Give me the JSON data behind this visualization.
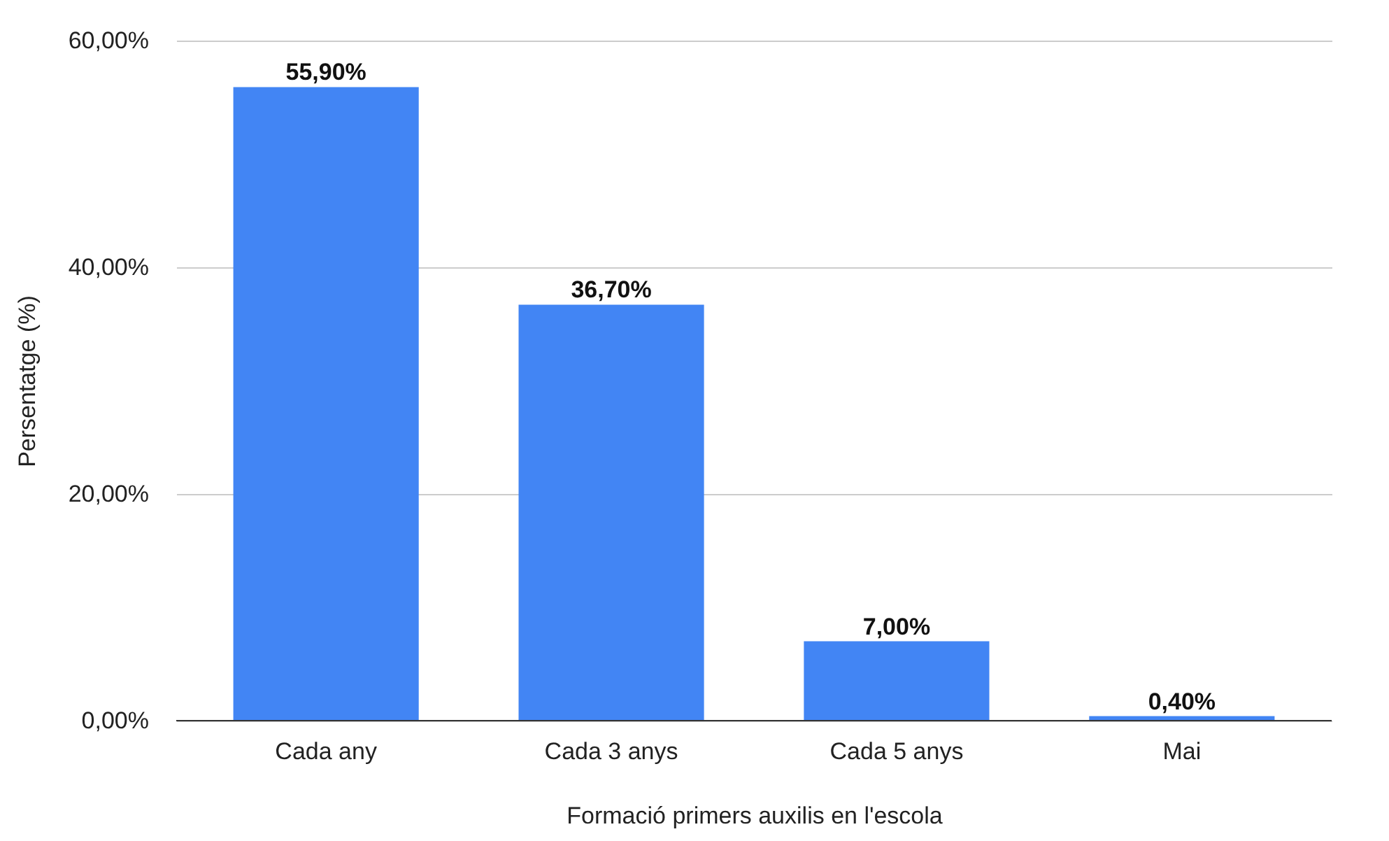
{
  "chart_data": {
    "type": "bar",
    "xlabel": "Formació primers auxilis en l'escola",
    "ylabel": "Persentatge (%)",
    "categories": [
      "Cada any",
      "Cada 3 anys",
      "Cada 5 anys",
      "Mai"
    ],
    "values": [
      55.9,
      36.7,
      7.0,
      0.4
    ],
    "value_labels": [
      "55,90%",
      "36,70%",
      "7,00%",
      "0,40%"
    ],
    "color": "#4285f4",
    "ylim": [
      0,
      60
    ],
    "yticks": [
      {
        "value": 0,
        "label": "0,00%"
      },
      {
        "value": 20,
        "label": "20,00%"
      },
      {
        "value": 40,
        "label": "40,00%"
      },
      {
        "value": 60,
        "label": "60,00%"
      }
    ],
    "grid": "y"
  }
}
